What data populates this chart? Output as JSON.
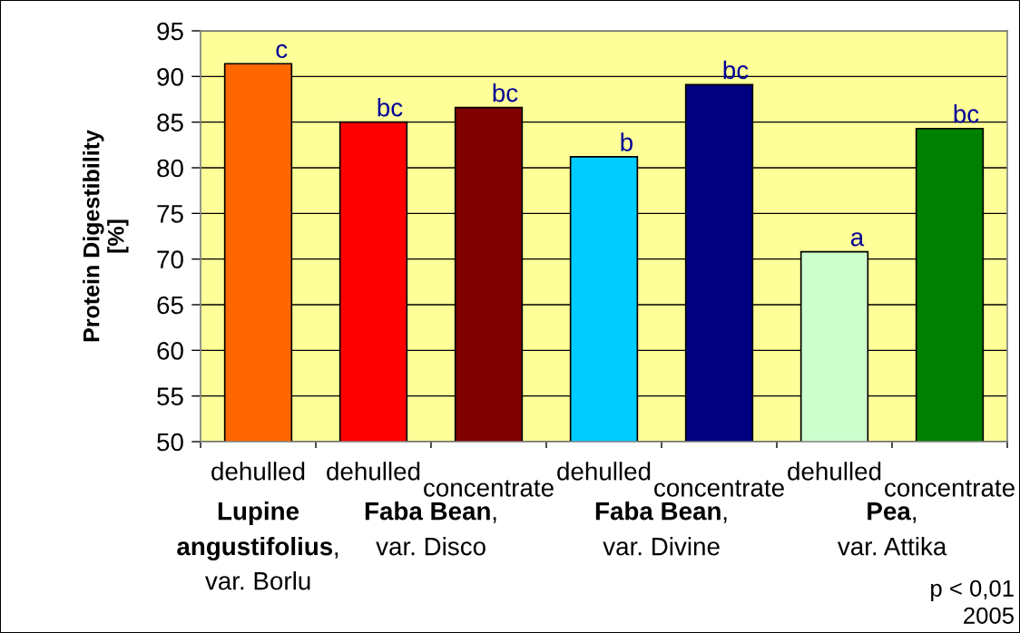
{
  "chart_data": {
    "type": "bar",
    "ylabel": "Protein Digestibility\n[%]",
    "categories": [
      "dehulled",
      "dehulled",
      "concentrate",
      "dehulled",
      "concentrate",
      "dehulled",
      "concentrate"
    ],
    "values": [
      91.4,
      85.0,
      86.6,
      81.2,
      89.1,
      70.8,
      84.3
    ],
    "colors": [
      "#ff6600",
      "#ff0000",
      "#800000",
      "#00ccff",
      "#000080",
      "#ccffcc",
      "#008000"
    ],
    "value_labels": [
      "c",
      "bc",
      "bc",
      "b",
      "bc",
      "a",
      "bc"
    ],
    "ylim": [
      50,
      95
    ],
    "yticks": [
      50,
      55,
      60,
      65,
      70,
      75,
      80,
      85,
      90,
      95
    ],
    "grid": "y",
    "annotations": [
      "Lupine angustifolius, var. Borlu",
      "Faba Bean, var. Disco",
      "Faba Bean, var. Divine",
      "Pea, var. Attika",
      "p < 0,01",
      "2005"
    ]
  }
}
